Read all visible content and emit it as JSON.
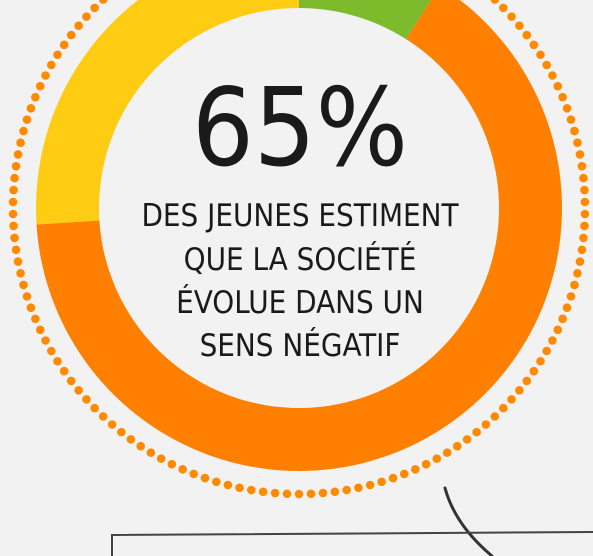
{
  "chart_data": {
    "type": "donut",
    "categories": [
      null,
      null,
      null
    ],
    "values": [
      9,
      65,
      26
    ],
    "value_labels": [
      null,
      "65%",
      null
    ],
    "colors": [
      "#7dbb2d",
      "#ff7f00",
      "#ffcc14"
    ],
    "annotation": [
      "DES JEUNES ESTIMENT",
      "QUE LA SOCIÉTÉ",
      "ÉVOLUE DANS UN",
      "SENS NÉGATIF"
    ]
  }
}
